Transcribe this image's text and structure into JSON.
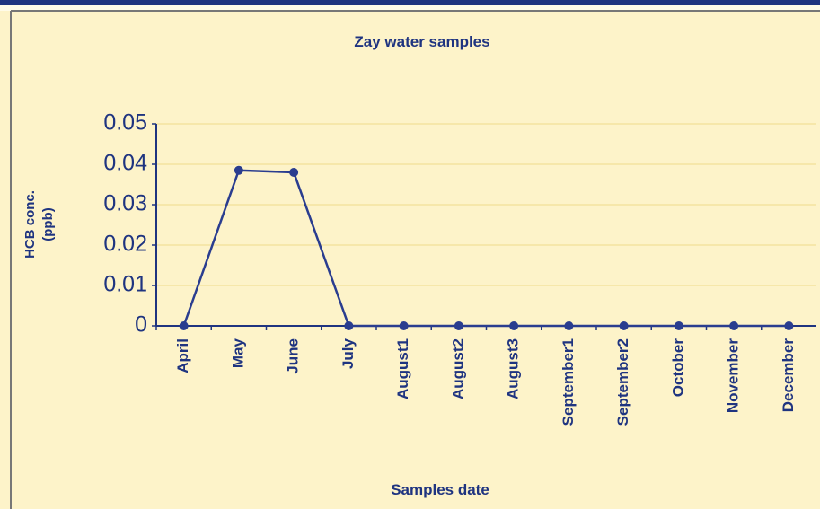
{
  "chart_data": {
    "type": "line",
    "title": "Zay water samples",
    "ylabel": [
      "HCB conc.",
      "(ppb)"
    ],
    "xlabel": "Samples date",
    "categories": [
      "April",
      "May",
      "June",
      "July",
      "August1",
      "August2",
      "August3",
      "September1",
      "September2",
      "October",
      "November",
      "December"
    ],
    "series": [
      {
        "name": "HCB",
        "color": "#2a3d8f",
        "values": [
          0,
          0.0385,
          0.038,
          0,
          0,
          0,
          0,
          0,
          0,
          0,
          0,
          0
        ]
      }
    ],
    "ylim": [
      0,
      0.05
    ],
    "yticks": [
      0,
      0.01,
      0.02,
      0.03,
      0.04,
      0.05
    ],
    "grid": true
  }
}
